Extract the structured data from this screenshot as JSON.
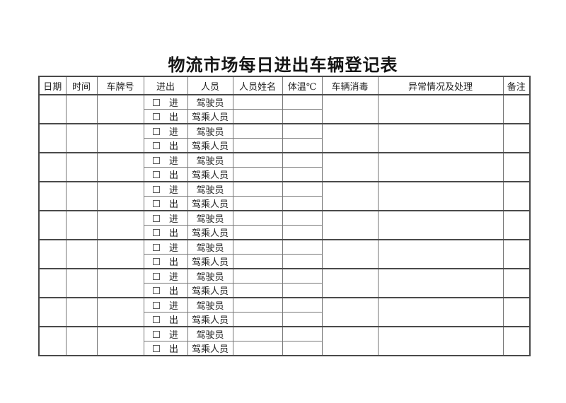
{
  "page": {
    "title": "物流市场每日进出车辆登记表"
  },
  "colors": {
    "border_thin": "#767676",
    "border_thick": "#4a4a4a",
    "text": "#222222",
    "background": "#ffffff"
  },
  "table": {
    "headers": [
      "日期",
      "时间",
      "车牌号",
      "进出",
      "人员",
      "人员姓名",
      "体温℃",
      "车辆消毒",
      "异常情况及处理",
      "备注"
    ],
    "header_keys": [
      "date",
      "time",
      "plate",
      "inout",
      "personnel",
      "name",
      "temperature",
      "disinfection",
      "abnormal",
      "remarks"
    ],
    "groups": [
      {
        "date": "",
        "time": "",
        "plate": "",
        "entry": {
          "checked": false,
          "direction": "进",
          "personnel": "驾驶员",
          "name": "",
          "temperature": ""
        },
        "exit": {
          "checked": false,
          "direction": "出",
          "personnel": "驾乘人员",
          "name": "",
          "temperature": ""
        },
        "disinfection": "",
        "abnormal": "",
        "remarks": ""
      },
      {
        "date": "",
        "time": "",
        "plate": "",
        "entry": {
          "checked": false,
          "direction": "进",
          "personnel": "驾驶员",
          "name": "",
          "temperature": ""
        },
        "exit": {
          "checked": false,
          "direction": "出",
          "personnel": "驾乘人员",
          "name": "",
          "temperature": ""
        },
        "disinfection": "",
        "abnormal": "",
        "remarks": ""
      },
      {
        "date": "",
        "time": "",
        "plate": "",
        "entry": {
          "checked": false,
          "direction": "进",
          "personnel": "驾驶员",
          "name": "",
          "temperature": ""
        },
        "exit": {
          "checked": false,
          "direction": "出",
          "personnel": "驾乘人员",
          "name": "",
          "temperature": ""
        },
        "disinfection": "",
        "abnormal": "",
        "remarks": ""
      },
      {
        "date": "",
        "time": "",
        "plate": "",
        "entry": {
          "checked": false,
          "direction": "进",
          "personnel": "驾驶员",
          "name": "",
          "temperature": ""
        },
        "exit": {
          "checked": false,
          "direction": "出",
          "personnel": "驾乘人员",
          "name": "",
          "temperature": ""
        },
        "disinfection": "",
        "abnormal": "",
        "remarks": ""
      },
      {
        "date": "",
        "time": "",
        "plate": "",
        "entry": {
          "checked": false,
          "direction": "进",
          "personnel": "驾驶员",
          "name": "",
          "temperature": ""
        },
        "exit": {
          "checked": false,
          "direction": "出",
          "personnel": "驾乘人员",
          "name": "",
          "temperature": ""
        },
        "disinfection": "",
        "abnormal": "",
        "remarks": ""
      },
      {
        "date": "",
        "time": "",
        "plate": "",
        "entry": {
          "checked": false,
          "direction": "进",
          "personnel": "驾驶员",
          "name": "",
          "temperature": ""
        },
        "exit": {
          "checked": false,
          "direction": "出",
          "personnel": "驾乘人员",
          "name": "",
          "temperature": ""
        },
        "disinfection": "",
        "abnormal": "",
        "remarks": ""
      },
      {
        "date": "",
        "time": "",
        "plate": "",
        "entry": {
          "checked": false,
          "direction": "进",
          "personnel": "驾驶员",
          "name": "",
          "temperature": ""
        },
        "exit": {
          "checked": false,
          "direction": "出",
          "personnel": "驾乘人员",
          "name": "",
          "temperature": ""
        },
        "disinfection": "",
        "abnormal": "",
        "remarks": ""
      },
      {
        "date": "",
        "time": "",
        "plate": "",
        "entry": {
          "checked": false,
          "direction": "进",
          "personnel": "驾驶员",
          "name": "",
          "temperature": ""
        },
        "exit": {
          "checked": false,
          "direction": "出",
          "personnel": "驾乘人员",
          "name": "",
          "temperature": ""
        },
        "disinfection": "",
        "abnormal": "",
        "remarks": ""
      },
      {
        "date": "",
        "time": "",
        "plate": "",
        "entry": {
          "checked": false,
          "direction": "进",
          "personnel": "驾驶员",
          "name": "",
          "temperature": ""
        },
        "exit": {
          "checked": false,
          "direction": "出",
          "personnel": "驾乘人员",
          "name": "",
          "temperature": ""
        },
        "disinfection": "",
        "abnormal": "",
        "remarks": ""
      }
    ]
  }
}
